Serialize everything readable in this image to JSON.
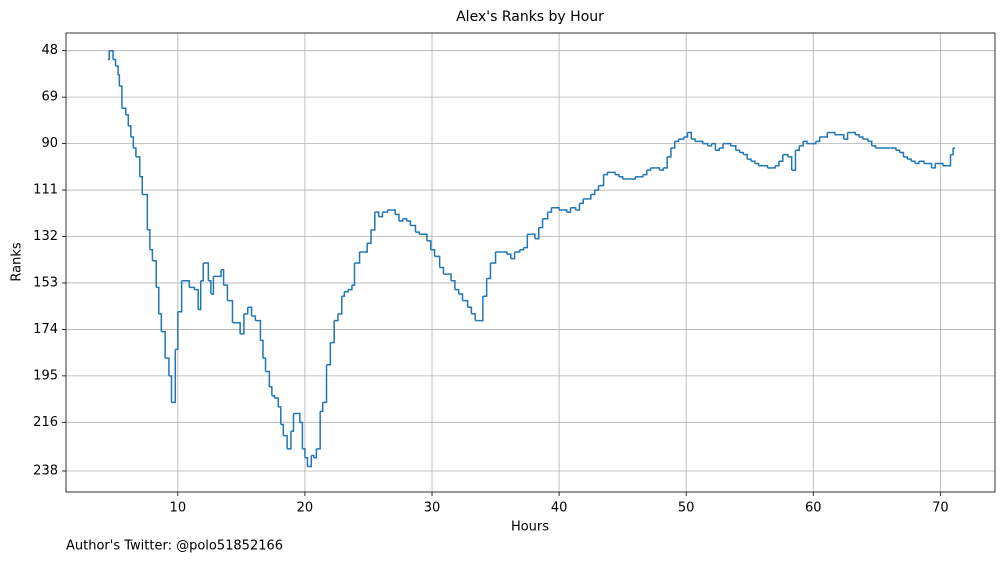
{
  "chart_data": {
    "type": "step",
    "title": "Alex's Ranks by Hour",
    "x_label": "Hours",
    "y_label": "Ranks",
    "footnote": "Author's Twitter: @polo51852166",
    "xlim": [
      1.2,
      74.3
    ],
    "xticks": [
      10,
      20,
      30,
      40,
      50,
      60,
      70
    ],
    "ylim": [
      247.5,
      40
    ],
    "yticks": [
      48,
      69,
      90,
      111,
      132,
      153,
      174,
      195,
      216,
      238
    ],
    "grid": true,
    "series": [
      {
        "name": "Rank",
        "color": "#1f77b4",
        "x": [
          4.5,
          4.6,
          4.9,
          5.1,
          5.3,
          5.4,
          5.6,
          5.9,
          6.1,
          6.3,
          6.5,
          6.7,
          7.0,
          7.2,
          7.6,
          7.8,
          8.0,
          8.3,
          8.5,
          8.7,
          9.0,
          9.3,
          9.5,
          9.8,
          10.0,
          10.3,
          10.6,
          10.9,
          11.3,
          11.6,
          11.8,
          12.0,
          12.4,
          12.6,
          12.8,
          13.1,
          13.4,
          13.6,
          13.9,
          14.3,
          14.6,
          14.9,
          15.2,
          15.5,
          15.8,
          16.1,
          16.5,
          16.7,
          16.9,
          17.2,
          17.4,
          17.6,
          17.9,
          18.1,
          18.3,
          18.6,
          18.9,
          19.1,
          19.4,
          19.6,
          19.8,
          20.0,
          20.2,
          20.5,
          20.7,
          20.9,
          21.2,
          21.4,
          21.7,
          22.0,
          22.3,
          22.6,
          22.9,
          23.1,
          23.4,
          23.7,
          23.9,
          24.3,
          24.6,
          24.9,
          25.2,
          25.5,
          25.8,
          26.1,
          26.5,
          26.8,
          27.1,
          27.4,
          27.7,
          28.0,
          28.3,
          28.7,
          29.0,
          29.3,
          29.6,
          29.9,
          30.2,
          30.6,
          30.9,
          31.2,
          31.5,
          31.8,
          32.1,
          32.4,
          32.8,
          33.1,
          33.4,
          33.7,
          34.0,
          34.3,
          34.6,
          35.0,
          35.3,
          35.6,
          35.9,
          36.2,
          36.5,
          36.9,
          37.2,
          37.5,
          37.8,
          38.1,
          38.4,
          38.7,
          39.1,
          39.4,
          39.7,
          40.0,
          40.3,
          40.6,
          40.9,
          41.3,
          41.6,
          41.9,
          42.2,
          42.5,
          42.8,
          43.1,
          43.5,
          43.8,
          44.1,
          44.4,
          44.7,
          45.0,
          45.4,
          45.7,
          46.0,
          46.3,
          46.6,
          46.9,
          47.2,
          47.6,
          47.9,
          48.2,
          48.5,
          48.8,
          49.1,
          49.4,
          49.8,
          50.1,
          50.4,
          50.7,
          51.0,
          51.3,
          51.7,
          52.0,
          52.3,
          52.6,
          52.9,
          53.2,
          53.5,
          53.9,
          54.2,
          54.5,
          54.8,
          55.1,
          55.4,
          55.7,
          56.1,
          56.4,
          56.7,
          57.0,
          57.3,
          57.6,
          58.0,
          58.3,
          58.6,
          58.9,
          59.2,
          59.5,
          59.8,
          60.2,
          60.5,
          60.8,
          61.1,
          61.4,
          61.7,
          62.0,
          62.4,
          62.7,
          63.0,
          63.3,
          63.6,
          63.9,
          64.3,
          64.6,
          64.9,
          65.2,
          65.5,
          65.8,
          66.1,
          66.5,
          66.8,
          67.1,
          67.4,
          67.7,
          68.0,
          68.3,
          68.7,
          69.0,
          69.3,
          69.6,
          69.9,
          70.2,
          70.6,
          70.8,
          71.0
        ],
        "values": [
          52,
          48,
          52,
          55,
          59,
          64,
          74,
          77,
          82,
          87,
          92,
          96,
          105,
          113,
          129,
          138,
          143,
          155,
          167,
          175,
          187,
          195,
          207,
          183,
          166,
          152,
          152,
          155,
          156,
          165,
          152,
          144,
          152,
          158,
          150,
          150,
          147,
          154,
          161,
          171,
          171,
          176,
          167,
          164,
          168,
          170,
          179,
          187,
          193,
          200,
          204,
          205,
          209,
          217,
          222,
          228,
          220,
          212,
          212,
          216,
          228,
          232,
          236,
          231,
          232,
          228,
          211,
          207,
          190,
          180,
          170,
          167,
          159,
          157,
          156,
          154,
          144,
          139,
          139,
          135,
          129,
          121,
          123,
          121,
          120,
          120,
          122,
          125,
          124,
          125,
          127,
          130,
          131,
          131,
          134,
          138,
          141,
          146,
          149,
          149,
          152,
          156,
          158,
          161,
          164,
          167,
          170,
          170,
          159,
          151,
          144,
          139,
          139,
          139,
          140,
          142,
          139,
          138,
          137,
          131,
          131,
          133,
          128,
          124,
          121,
          119,
          119,
          120,
          120,
          121,
          119,
          120,
          117,
          115,
          115,
          113,
          111,
          109,
          104,
          103,
          103,
          104,
          105,
          106,
          106,
          106,
          105,
          105,
          104,
          102,
          101,
          101,
          102,
          101,
          96,
          92,
          89,
          88,
          87,
          85,
          88,
          89,
          89,
          90,
          91,
          90,
          93,
          92,
          90,
          90,
          91,
          93,
          94,
          95,
          97,
          98,
          99,
          100,
          100,
          101,
          101,
          100,
          98,
          95,
          96,
          102,
          93,
          91,
          89,
          90,
          90,
          89,
          87,
          87,
          85,
          85,
          86,
          86,
          88,
          85,
          85,
          86,
          87,
          88,
          89,
          91,
          92,
          92,
          92,
          92,
          92,
          93,
          94,
          96,
          97,
          98,
          99,
          98,
          99,
          99,
          101,
          99,
          99,
          100,
          100,
          95,
          92
        ]
      }
    ]
  }
}
